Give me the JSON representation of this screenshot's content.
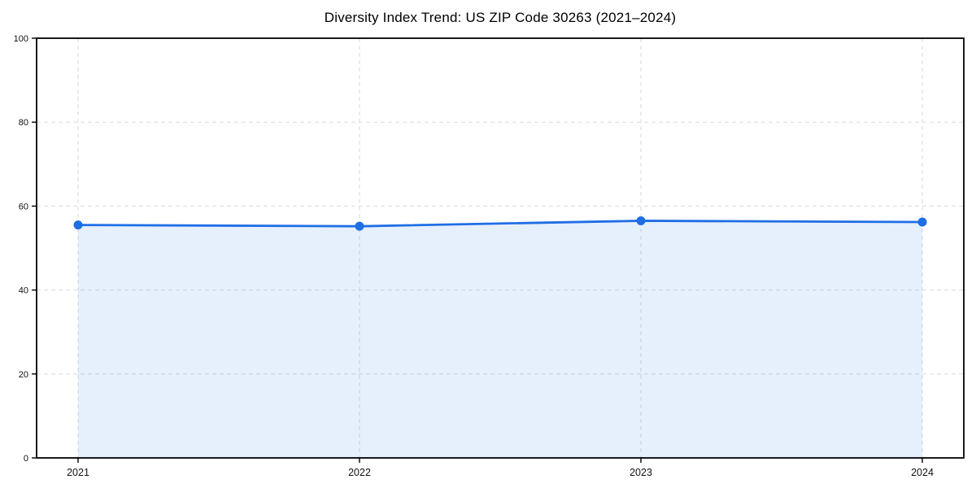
{
  "chart_data": {
    "type": "area",
    "title": "Diversity Index Trend: US ZIP Code 30263 (2021–2024)",
    "x": [
      "2021",
      "2022",
      "2023",
      "2024"
    ],
    "values": [
      55.5,
      55.2,
      56.5,
      56.2
    ],
    "xlabel": "",
    "ylabel": "",
    "ylim": [
      0,
      100
    ],
    "yticks": [
      0,
      20,
      40,
      60,
      80,
      100
    ],
    "grid": true,
    "grid_style": "dashed",
    "legend": false,
    "marker": "circle",
    "colors": {
      "line": "#1f6ee5",
      "marker": "#1f6ee5",
      "fill": "rgba(31,110,229,0.11)",
      "grid": "#dadada",
      "spine": "#000000",
      "tick_label": "#111111",
      "background": "#ffffff"
    }
  }
}
